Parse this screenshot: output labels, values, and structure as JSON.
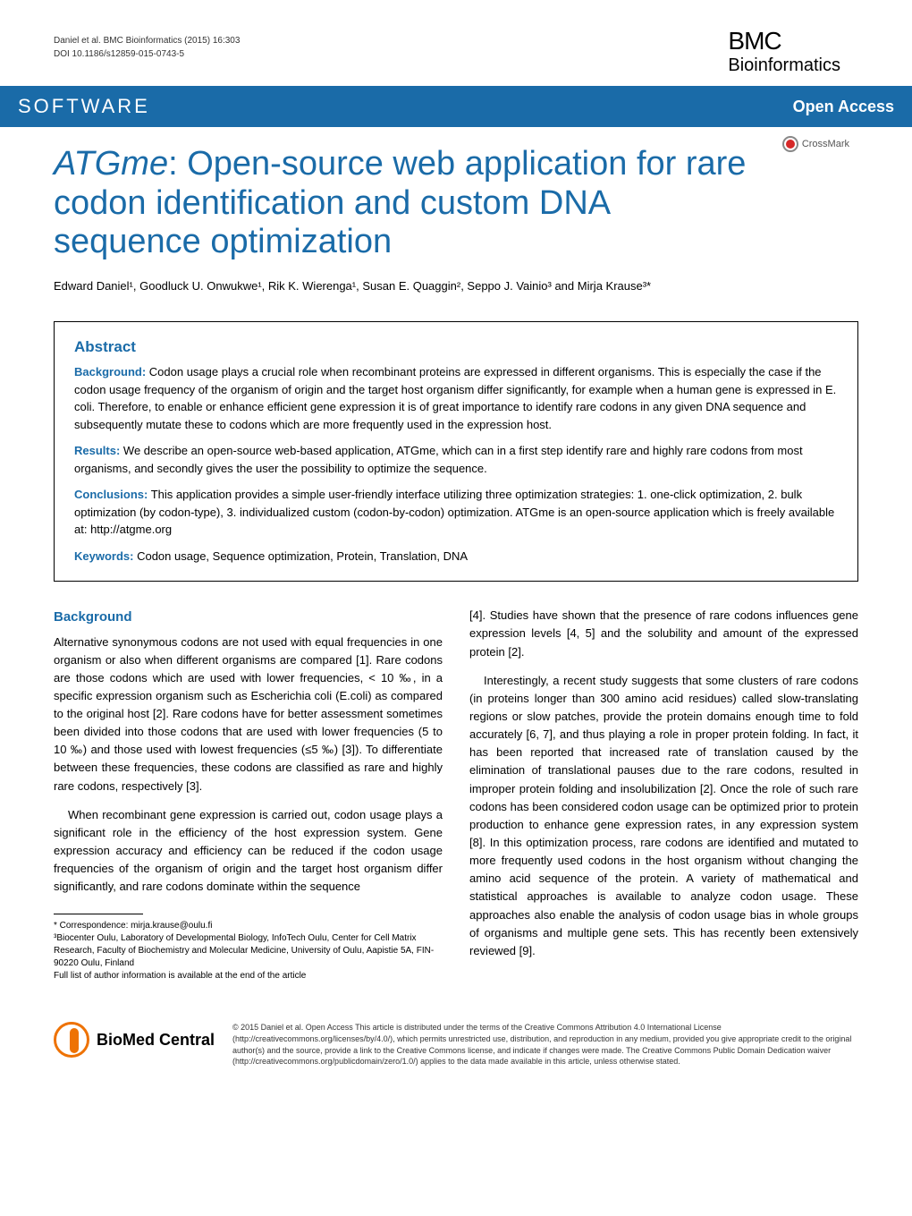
{
  "header": {
    "citation": "Daniel et al. BMC Bioinformatics  (2015) 16:303",
    "doi": "DOI 10.1186/s12859-015-0743-5",
    "logo_top": "BMC",
    "logo_bottom": "Bioinformatics"
  },
  "banner": {
    "left": "SOFTWARE",
    "right": "Open Access"
  },
  "crossmark": "CrossMark",
  "title": {
    "italic_part": "ATGme",
    "rest": ": Open-source web application for rare codon identification and custom DNA sequence optimization"
  },
  "authors": "Edward Daniel¹, Goodluck U. Onwukwe¹, Rik K. Wierenga¹, Susan E. Quaggin², Seppo J. Vainio³ and Mirja Krause³*",
  "abstract": {
    "heading": "Abstract",
    "background_label": "Background:",
    "background_text": " Codon usage plays a crucial role when recombinant proteins are expressed in different organisms. This is especially the case if the codon usage frequency of the organism of origin and the target host organism differ significantly, for example when a human gene is expressed in E. coli. Therefore, to enable or enhance efficient gene expression it is of great importance to identify rare codons in any given DNA sequence and subsequently mutate these to codons which are more frequently used in the expression host.",
    "results_label": "Results:",
    "results_text": " We describe an open-source web-based application, ATGme, which can in a first step identify rare and highly rare codons from most organisms, and secondly gives the user the possibility to optimize the sequence.",
    "conclusions_label": "Conclusions:",
    "conclusions_text": " This application provides a simple user-friendly interface utilizing three optimization strategies: 1. one-click optimization, 2. bulk optimization (by codon-type), 3. individualized custom (codon-by-codon) optimization. ATGme is an open-source application which is freely available at: http://atgme.org",
    "keywords_label": "Keywords:",
    "keywords_text": " Codon usage, Sequence optimization, Protein, Translation, DNA"
  },
  "body": {
    "section_heading": "Background",
    "left_p1": "Alternative synonymous codons are not used with equal frequencies in one organism or also when different organisms are compared [1]. Rare codons are those codons which are used with lower frequencies, < 10 ‰, in a specific expression organism such as Escherichia coli (E.coli) as compared to the original host [2]. Rare codons have for better assessment sometimes been divided into those codons that are used with lower frequencies (5 to 10 ‰) and those used with lowest frequencies (≤5 ‰) [3]). To differentiate between these frequencies, these codons are classified as rare and highly rare codons, respectively [3].",
    "left_p2": "When recombinant gene expression is carried out, codon usage plays a significant role in the efficiency of the host expression system. Gene expression accuracy and efficiency can be reduced if the codon usage frequencies of the organism of origin and the target host organism differ significantly, and rare codons dominate within the sequence",
    "right_p1": "[4]. Studies have shown that the presence of rare codons influences gene expression levels [4, 5] and the solubility and amount of the expressed protein [2].",
    "right_p2": "Interestingly, a recent study suggests that some clusters of rare codons (in proteins longer than 300 amino acid residues) called slow-translating regions or slow patches, provide the protein domains enough time to fold accurately [6, 7], and thus playing a role in proper protein folding. In fact, it has been reported that increased rate of translation caused by the elimination of translational pauses due to the rare codons, resulted in improper protein folding and insolubilization [2]. Once the role of such rare codons has been considered codon usage can be optimized prior to protein production to enhance gene expression rates, in any expression system [8]. In this optimization process, rare codons are identified and mutated to more frequently used codons in the host organism without changing the amino acid sequence of the protein. A variety of mathematical and statistical approaches is available to analyze codon usage. These approaches also enable the analysis of codon usage bias in whole groups of organisms and multiple gene sets. This has recently been extensively reviewed [9]."
  },
  "footnotes": {
    "correspondence": "* Correspondence: mirja.krause@oulu.fi",
    "affiliation": "³Biocenter Oulu, Laboratory of Developmental Biology, InfoTech Oulu, Center for Cell Matrix Research, Faculty of Biochemistry and Molecular Medicine, University of Oulu, Aapistie 5A, FIN-90220 Oulu, Finland",
    "full_list": "Full list of author information is available at the end of the article"
  },
  "footer": {
    "biomed": "BioMed Central",
    "license": "© 2015 Daniel et al. Open Access This article is distributed under the terms of the Creative Commons Attribution 4.0 International License (http://creativecommons.org/licenses/by/4.0/), which permits unrestricted use, distribution, and reproduction in any medium, provided you give appropriate credit to the original author(s) and the source, provide a link to the Creative Commons license, and indicate if changes were made. The Creative Commons Public Domain Dedication waiver (http://creativecommons.org/publicdomain/zero/1.0/) applies to the data made available in this article, unless otherwise stated."
  },
  "colors": {
    "banner_bg": "#1a6ba8",
    "accent": "#1a6ba8",
    "orange": "#ee7203",
    "red": "#d62828",
    "text": "#000000"
  }
}
